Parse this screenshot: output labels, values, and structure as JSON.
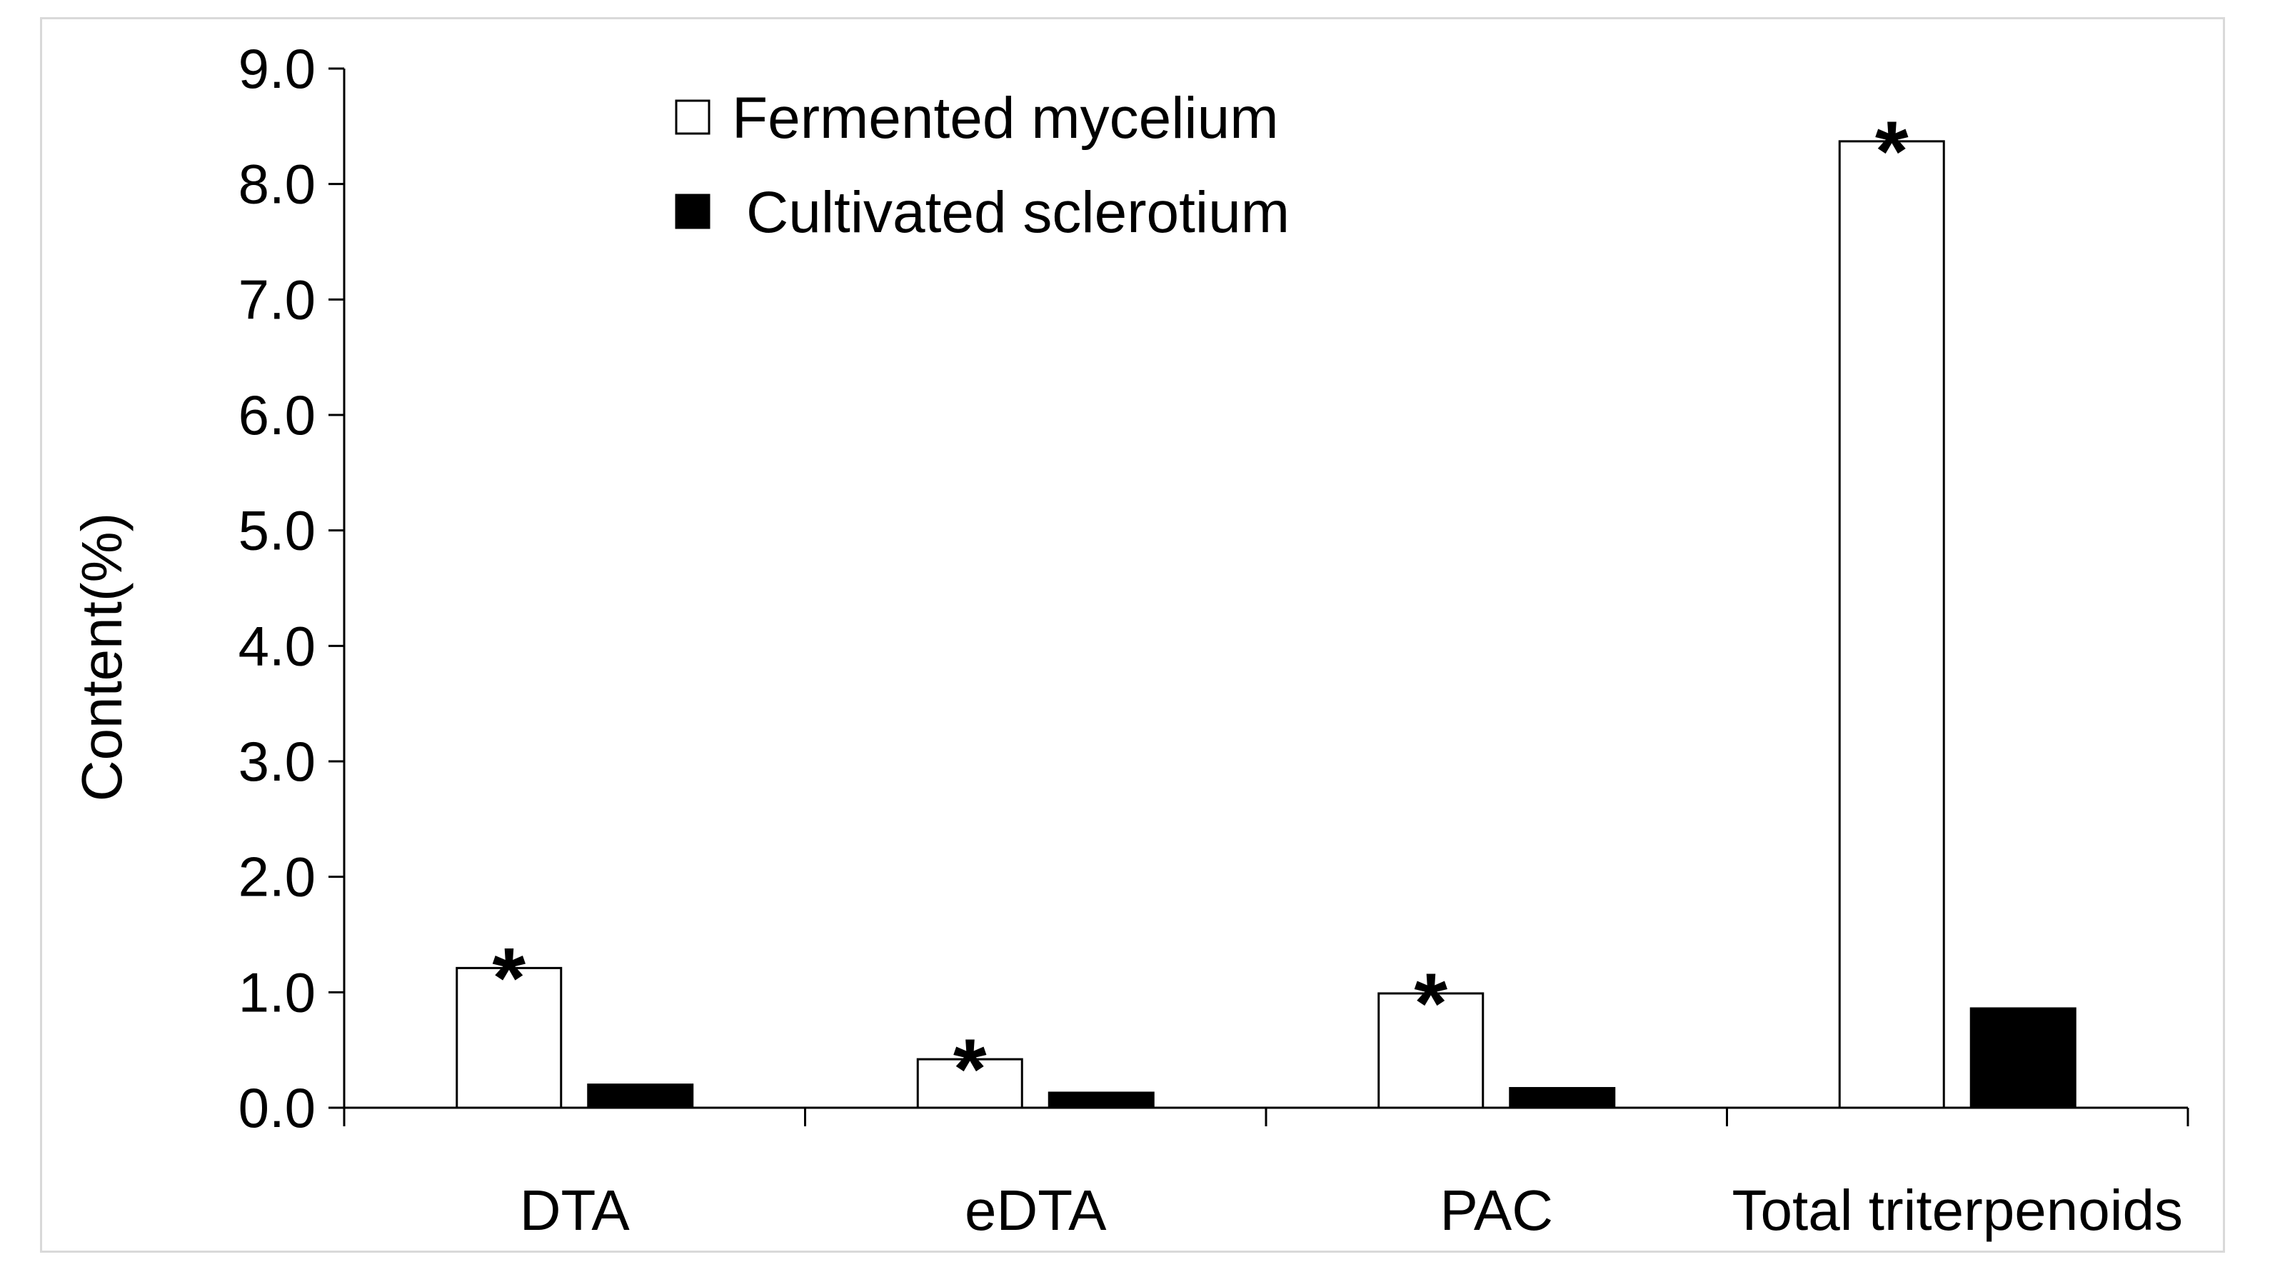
{
  "chart_data": {
    "type": "bar",
    "title": "",
    "xlabel": "",
    "ylabel": "Content(%)",
    "ylim": [
      0,
      9
    ],
    "yticks": [
      "0.0",
      "1.0",
      "2.0",
      "3.0",
      "4.0",
      "5.0",
      "6.0",
      "7.0",
      "8.0",
      "9.0"
    ],
    "categories": [
      "DTA",
      "eDTA",
      "PAC",
      "Total triterpenoids"
    ],
    "series": [
      {
        "name": "Fermented mycelium",
        "values": [
          1.21,
          0.42,
          0.99,
          8.37
        ],
        "fill": "#ffffff",
        "stroke": "#000000"
      },
      {
        "name": "Cultivated sclerotium",
        "values": [
          0.2,
          0.13,
          0.17,
          0.86
        ],
        "fill": "#000000",
        "stroke": "#000000"
      }
    ],
    "annotations": [
      {
        "text": "*",
        "category": "DTA",
        "series": "Fermented mycelium"
      },
      {
        "text": "*",
        "category": "eDTA",
        "series": "Fermented mycelium"
      },
      {
        "text": "*",
        "category": "PAC",
        "series": "Fermented mycelium"
      },
      {
        "text": "*",
        "category": "Total triterpenoids",
        "series": "Fermented mycelium"
      }
    ],
    "legend": {
      "position": "top-left"
    },
    "grid": false
  }
}
